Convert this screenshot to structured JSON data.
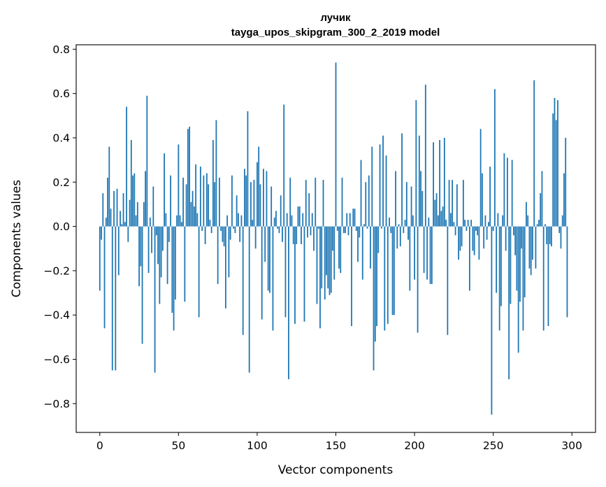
{
  "chart_data": {
    "type": "bar",
    "title": "лучик",
    "subtitle": "tayga_upos_skipgram_300_2_2019 model",
    "xlabel": "Vector components",
    "ylabel": "Components values",
    "xlim": [
      -15,
      315
    ],
    "ylim": [
      -0.93,
      0.82
    ],
    "xticks": [
      0,
      50,
      100,
      150,
      200,
      250,
      300
    ],
    "xtick_labels": [
      "0",
      "50",
      "100",
      "150",
      "200",
      "250",
      "300"
    ],
    "yticks": [
      -0.8,
      -0.6,
      -0.4,
      -0.2,
      0.0,
      0.2,
      0.4,
      0.6,
      0.8
    ],
    "ytick_labels": [
      "−0.8",
      "−0.6",
      "−0.4",
      "−0.2",
      "0.0",
      "0.2",
      "0.4",
      "0.6",
      "0.8"
    ],
    "color": "#1f77b4",
    "values": [
      -0.29,
      -0.06,
      0.15,
      -0.46,
      0.04,
      0.22,
      0.36,
      0.08,
      -0.65,
      0.16,
      -0.65,
      0.17,
      -0.22,
      0.07,
      0.01,
      0.15,
      0.02,
      0.54,
      -0.07,
      0.12,
      0.39,
      0.23,
      0.24,
      0.05,
      0.11,
      -0.27,
      -0.18,
      -0.53,
      0.11,
      0.25,
      0.59,
      -0.21,
      0.04,
      -0.12,
      0.18,
      -0.66,
      -0.04,
      -0.17,
      -0.35,
      -0.23,
      -0.11,
      0.33,
      0.06,
      -0.26,
      -0.07,
      0.23,
      -0.39,
      -0.47,
      -0.33,
      0.05,
      0.37,
      0.05,
      0.02,
      0.22,
      -0.34,
      0.19,
      0.44,
      0.45,
      0.11,
      0.16,
      0.09,
      0.28,
      0.06,
      -0.41,
      0.27,
      -0.02,
      0.23,
      -0.08,
      0.24,
      0.19,
      0.03,
      -0.03,
      0.39,
      0.2,
      0.48,
      -0.26,
      0.22,
      -0.02,
      -0.07,
      -0.09,
      -0.37,
      0.05,
      -0.23,
      -0.06,
      0.23,
      -0.01,
      -0.03,
      0.14,
      0.06,
      -0.07,
      0.05,
      -0.49,
      0.26,
      0.23,
      0.52,
      -0.66,
      0.2,
      0.03,
      0.21,
      -0.1,
      0.29,
      0.36,
      0.19,
      -0.42,
      0.26,
      -0.16,
      0.25,
      -0.29,
      -0.3,
      0.18,
      -0.47,
      0.04,
      0.07,
      -0.01,
      -0.03,
      0.14,
      -0.07,
      0.55,
      -0.41,
      0.06,
      -0.69,
      0.22,
      0.05,
      -0.08,
      -0.44,
      -0.08,
      0.09,
      0.09,
      -0.08,
      0.06,
      -0.43,
      0.21,
      -0.05,
      0.15,
      -0.04,
      0.06,
      -0.11,
      0.22,
      -0.35,
      -0.01,
      -0.46,
      -0.28,
      0.21,
      -0.33,
      -0.22,
      -0.28,
      -0.31,
      -0.3,
      -0.11,
      -0.24,
      0.74,
      -0.02,
      -0.19,
      -0.21,
      0.22,
      -0.03,
      -0.03,
      0.06,
      -0.04,
      0.06,
      -0.45,
      0.08,
      0.08,
      -0.02,
      -0.16,
      -0.05,
      0.3,
      -0.24,
      0.01,
      0.2,
      -0.01,
      0.23,
      -0.19,
      0.36,
      -0.65,
      -0.52,
      -0.45,
      -0.12,
      0.37,
      -0.01,
      0.41,
      -0.47,
      0.32,
      -0.44,
      0.04,
      -0.03,
      -0.4,
      -0.4,
      0.25,
      -0.1,
      0.01,
      -0.09,
      0.42,
      -0.03,
      0.03,
      0.2,
      -0.06,
      -0.29,
      0.18,
      0.05,
      -0.24,
      0.57,
      -0.48,
      0.41,
      0.25,
      0.16,
      -0.21,
      0.64,
      -0.24,
      0.04,
      -0.26,
      -0.26,
      0.38,
      0.12,
      0.15,
      0.05,
      0.39,
      0.07,
      0.09,
      0.4,
      0.03,
      -0.49,
      0.21,
      0.06,
      0.21,
      0.02,
      -0.04,
      0.19,
      -0.15,
      -0.11,
      -0.09,
      0.21,
      0.03,
      -0.02,
      0.03,
      -0.29,
      0.03,
      -0.11,
      -0.13,
      -0.02,
      -0.04,
      -0.15,
      0.44,
      0.24,
      -0.1,
      0.05,
      -0.06,
      0.02,
      0.27,
      -0.85,
      -0.02,
      0.62,
      -0.3,
      0.06,
      -0.47,
      -0.36,
      0.05,
      0.33,
      -0.11,
      0.31,
      -0.69,
      -0.35,
      0.3,
      -0.04,
      -0.13,
      -0.29,
      -0.57,
      -0.34,
      -0.1,
      -0.47,
      -0.32,
      0.11,
      0.05,
      -0.19,
      -0.22,
      -0.15,
      0.66,
      -0.19,
      0.01,
      0.03,
      0.15,
      0.25,
      -0.47,
      0.01,
      -0.08,
      -0.45,
      -0.08,
      -0.09,
      0.51,
      0.58,
      0.48,
      0.57,
      -0.03,
      -0.1,
      0.05,
      0.24,
      0.4,
      -0.41
    ]
  }
}
